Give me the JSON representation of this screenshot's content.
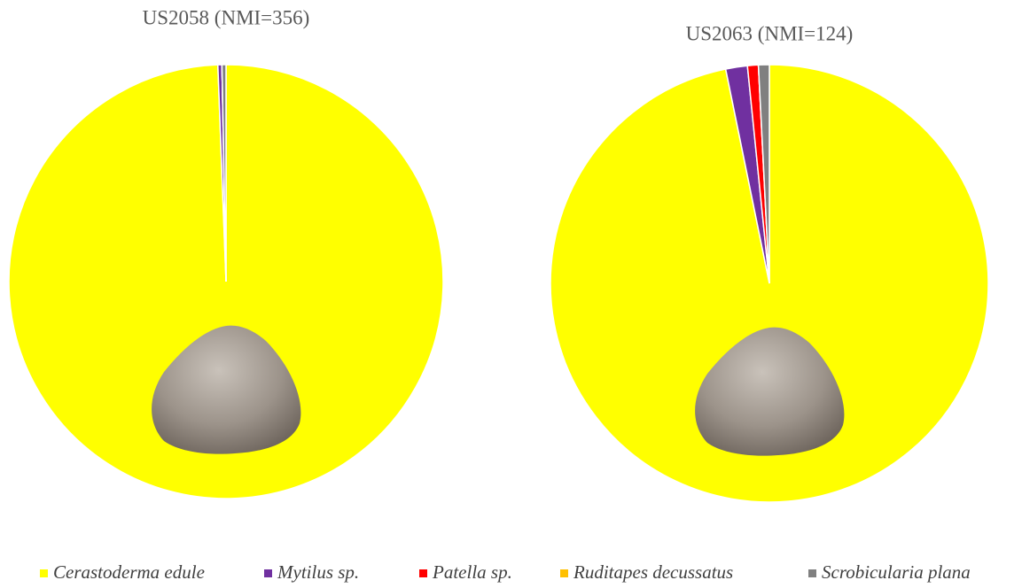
{
  "chart_data": [
    {
      "type": "pie",
      "title": "US2058  (NMI=356)",
      "categories": [
        "Cerastoderma edule",
        "Mytilus sp.",
        "Patella sp.",
        "Ruditapes decussatus",
        "Scrobicularia plana"
      ],
      "values": [
        99.4,
        0.3,
        0,
        0,
        0.3
      ],
      "colors": [
        "#ffff00",
        "#7030a0",
        "#ff0000",
        "#ffc000",
        "#808080"
      ]
    },
    {
      "type": "pie",
      "title": "US2063  (NMI=124)",
      "categories": [
        "Cerastoderma edule",
        "Mytilus sp.",
        "Patella sp.",
        "Ruditapes decussatus",
        "Scrobicularia plana"
      ],
      "values": [
        96.8,
        1.6,
        0.8,
        0,
        0.8
      ],
      "colors": [
        "#ffff00",
        "#7030a0",
        "#ff0000",
        "#ffc000",
        "#808080"
      ]
    }
  ]
}
